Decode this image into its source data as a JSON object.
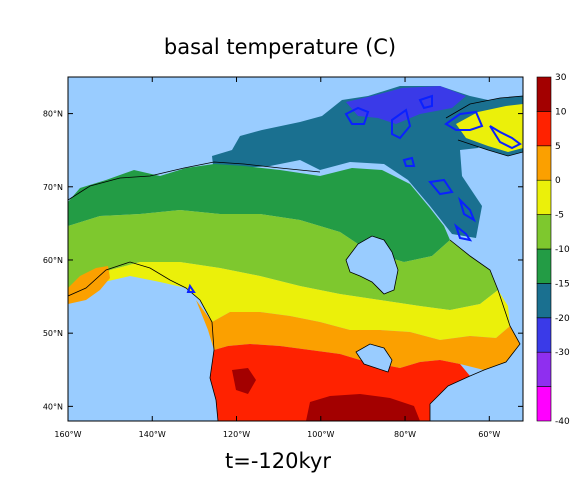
{
  "title": "basal temperature (C)",
  "time_label": "t=-120kyr",
  "map": {
    "lon_range": [
      -160,
      -52
    ],
    "lat_range": [
      38,
      85
    ],
    "x_ticks": [
      {
        "lon": -160,
        "label": "160°W"
      },
      {
        "lon": -140,
        "label": "140°W"
      },
      {
        "lon": -120,
        "label": "120°W"
      },
      {
        "lon": -100,
        "label": "100°W"
      },
      {
        "lon": -80,
        "label": "80°W"
      },
      {
        "lon": -60,
        "label": "60°W"
      }
    ],
    "y_ticks": [
      {
        "lat": 40,
        "label": "40°N"
      },
      {
        "lat": 50,
        "label": "50°N"
      },
      {
        "lat": 60,
        "label": "60°N"
      },
      {
        "lat": 70,
        "label": "70°N"
      },
      {
        "lat": 80,
        "label": "80°N"
      }
    ],
    "ocean_color": "#99ccff",
    "contour_color": "#0a21ff"
  },
  "colorbar": {
    "bins": [
      {
        "color": "#ff00ff",
        "label": "-40"
      },
      {
        "color": "#8f2fef",
        "label": "-30"
      },
      {
        "color": "#3a3ae8",
        "label": "-20"
      },
      {
        "color": "#1a7090",
        "label": "-15"
      },
      {
        "color": "#239c45",
        "label": "-10"
      },
      {
        "color": "#7ec82e",
        "label": "-5"
      },
      {
        "color": "#ebf00a",
        "label": "0"
      },
      {
        "color": "#fba000",
        "label": "5"
      },
      {
        "color": "#ff2200",
        "label": "10"
      },
      {
        "color": "#a30000",
        "label": "30"
      }
    ]
  }
}
